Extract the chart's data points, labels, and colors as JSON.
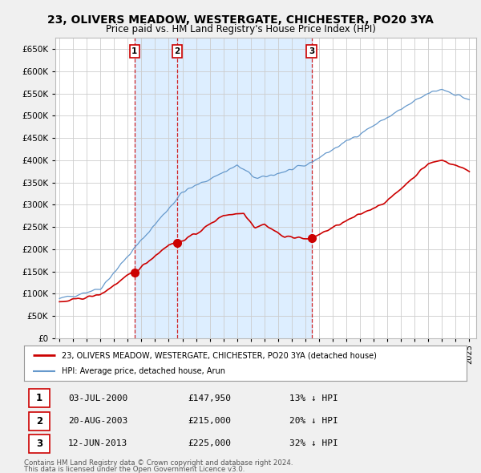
{
  "title": "23, OLIVERS MEADOW, WESTERGATE, CHICHESTER, PO20 3YA",
  "subtitle": "Price paid vs. HM Land Registry's House Price Index (HPI)",
  "ylim": [
    0,
    675000
  ],
  "yticks": [
    0,
    50000,
    100000,
    150000,
    200000,
    250000,
    300000,
    350000,
    400000,
    450000,
    500000,
    550000,
    600000,
    650000
  ],
  "xlim_start": 1994.7,
  "xlim_end": 2025.5,
  "xticks": [
    1995,
    1996,
    1997,
    1998,
    1999,
    2000,
    2001,
    2002,
    2003,
    2004,
    2005,
    2006,
    2007,
    2008,
    2009,
    2010,
    2011,
    2012,
    2013,
    2014,
    2015,
    2016,
    2017,
    2018,
    2019,
    2020,
    2021,
    2022,
    2023,
    2024,
    2025
  ],
  "transactions": [
    {
      "date": "03-JUL-2000",
      "price": 147950,
      "label": "1",
      "hpi_diff": "13% ↓ HPI",
      "x": 2000.5
    },
    {
      "date": "20-AUG-2003",
      "price": 215000,
      "label": "2",
      "hpi_diff": "20% ↓ HPI",
      "x": 2003.63
    },
    {
      "date": "12-JUN-2013",
      "price": 225000,
      "label": "3",
      "hpi_diff": "32% ↓ HPI",
      "x": 2013.45
    }
  ],
  "legend_red": "23, OLIVERS MEADOW, WESTERGATE, CHICHESTER, PO20 3YA (detached house)",
  "legend_blue": "HPI: Average price, detached house, Arun",
  "footer1": "Contains HM Land Registry data © Crown copyright and database right 2024.",
  "footer2": "This data is licensed under the Open Government Licence v3.0.",
  "bg_color": "#f0f0f0",
  "plot_bg_color": "#ffffff",
  "shade_color": "#ddeeff",
  "grid_color": "#cccccc",
  "red_color": "#cc0000",
  "blue_color": "#6699cc",
  "dash_color": "#cc0000"
}
